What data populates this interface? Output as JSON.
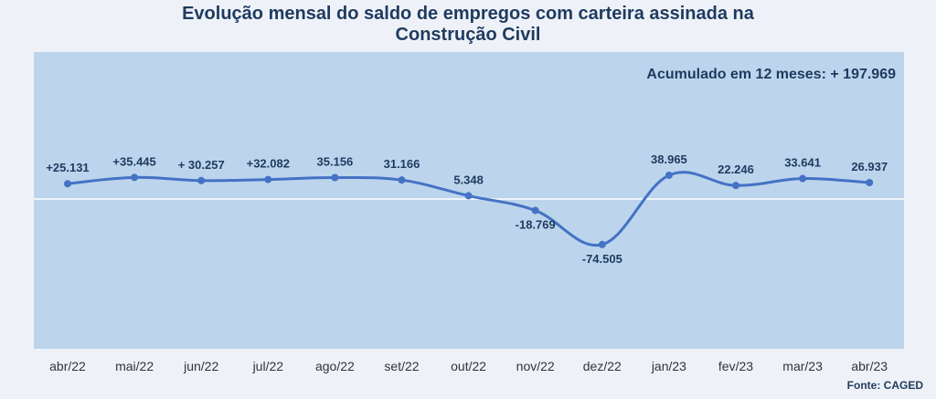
{
  "chart_data": {
    "type": "line",
    "title_lines": [
      "Evolução mensal do saldo de empregos com carteira assinada na",
      "Construção Civil"
    ],
    "annotation": "Acumulado em 12 meses: + 197.969",
    "source": "Fonte: CAGED",
    "categories": [
      "abr/22",
      "mai/22",
      "jun/22",
      "jul/22",
      "ago/22",
      "set/22",
      "out/22",
      "nov/22",
      "dez/22",
      "jan/23",
      "fev/23",
      "mar/23",
      "abr/23"
    ],
    "values": [
      25131,
      35445,
      30257,
      32082,
      35156,
      31166,
      5348,
      -18769,
      -74505,
      38965,
      22246,
      33641,
      26937
    ],
    "value_labels": [
      "+25.131",
      "+35.445",
      "+ 30.257",
      "+32.082",
      "35.156",
      "31.166",
      "5.348",
      "-18.769",
      "-74.505",
      "38.965",
      "22.246",
      "33.641",
      "26.937"
    ],
    "ylim": [
      -250000,
      100000
    ],
    "grid": false,
    "zero_line": true,
    "colors": {
      "plot_background": "#bcd5ec",
      "line": "#4472c4",
      "label_text": "#1f3a5f",
      "zero_line": "#ffffff"
    }
  }
}
